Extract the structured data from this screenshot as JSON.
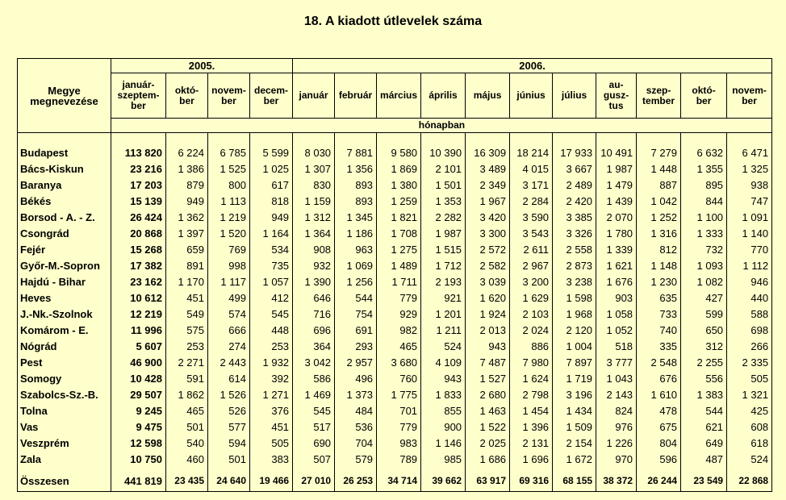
{
  "title": "18. A kiadott útlevelek száma",
  "header": {
    "county_label": "Megye megnevezése",
    "year_2005": "2005.",
    "year_2006": "2006.",
    "unit": "hónapban",
    "months": [
      "január-szeptember",
      "október",
      "november",
      "december",
      "január",
      "február",
      "március",
      "április",
      "május",
      "június",
      "július",
      "augusztus",
      "szeptember",
      "október",
      "november"
    ],
    "months_display": [
      "január-\nszeptem-\nber",
      "októ-\nber",
      "novem-\nber",
      "decem-\nber",
      "január",
      "február",
      "március",
      "április",
      "május",
      "június",
      "július",
      "au-\ngusz-\ntus",
      "szep-\ntember",
      "októ-\nber",
      "novem-\nber"
    ]
  },
  "rows": [
    {
      "name": "Budapest",
      "values": [
        "113 820",
        "6 224",
        "6 785",
        "5 599",
        "8 030",
        "7 881",
        "9 580",
        "10 390",
        "16 309",
        "18 214",
        "17 933",
        "10 491",
        "7 279",
        "6 632",
        "6 471"
      ]
    },
    {
      "name": "Bács-Kiskun",
      "values": [
        "23 216",
        "1 386",
        "1 525",
        "1 025",
        "1 307",
        "1 356",
        "1 869",
        "2 101",
        "3 489",
        "4 015",
        "3 667",
        "1 987",
        "1 448",
        "1 355",
        "1 325"
      ]
    },
    {
      "name": "Baranya",
      "values": [
        "17 203",
        "879",
        "800",
        "617",
        "830",
        "893",
        "1 380",
        "1 501",
        "2 349",
        "3 171",
        "2 489",
        "1 479",
        "887",
        "895",
        "938"
      ]
    },
    {
      "name": "Békés",
      "values": [
        "15 139",
        "949",
        "1 113",
        "818",
        "1 159",
        "893",
        "1 259",
        "1 353",
        "1 967",
        "2 284",
        "2 420",
        "1 439",
        "1 042",
        "844",
        "747"
      ]
    },
    {
      "name": "Borsod - A. - Z.",
      "values": [
        "26 424",
        "1 362",
        "1 219",
        "949",
        "1 312",
        "1 345",
        "1 821",
        "2 282",
        "3 420",
        "3 590",
        "3 385",
        "2 070",
        "1 252",
        "1 100",
        "1 091"
      ]
    },
    {
      "name": "Csongrád",
      "values": [
        "20 868",
        "1 397",
        "1 520",
        "1 164",
        "1 364",
        "1 186",
        "1 708",
        "1 987",
        "3 300",
        "3 543",
        "3 326",
        "1 780",
        "1 316",
        "1 333",
        "1 140"
      ]
    },
    {
      "name": "Fejér",
      "values": [
        "15 268",
        "659",
        "769",
        "534",
        "908",
        "963",
        "1 275",
        "1 515",
        "2 572",
        "2 611",
        "2 558",
        "1 339",
        "812",
        "732",
        "770"
      ]
    },
    {
      "name": "Győr-M.-Sopron",
      "values": [
        "17 382",
        "891",
        "998",
        "735",
        "932",
        "1 069",
        "1 489",
        "1 712",
        "2 582",
        "2 967",
        "2 873",
        "1 621",
        "1 148",
        "1 093",
        "1 112"
      ]
    },
    {
      "name": "Hajdú - Bihar",
      "values": [
        "23 162",
        "1 170",
        "1 117",
        "1 057",
        "1 390",
        "1 256",
        "1 711",
        "2 193",
        "3 039",
        "3 200",
        "3 238",
        "1 676",
        "1 230",
        "1 082",
        "946"
      ]
    },
    {
      "name": "Heves",
      "values": [
        "10 612",
        "451",
        "499",
        "412",
        "646",
        "544",
        "779",
        "921",
        "1 620",
        "1 629",
        "1 598",
        "903",
        "635",
        "427",
        "440"
      ]
    },
    {
      "name": "J.-Nk.-Szolnok",
      "values": [
        "12 219",
        "549",
        "574",
        "545",
        "716",
        "754",
        "929",
        "1 201",
        "1 924",
        "2 103",
        "1 968",
        "1 058",
        "733",
        "599",
        "588"
      ]
    },
    {
      "name": "Komárom - E.",
      "values": [
        "11 996",
        "575",
        "666",
        "448",
        "696",
        "691",
        "982",
        "1 211",
        "2 013",
        "2 024",
        "2 120",
        "1 052",
        "740",
        "650",
        "698"
      ]
    },
    {
      "name": "Nógrád",
      "values": [
        "5 607",
        "253",
        "274",
        "253",
        "364",
        "293",
        "465",
        "524",
        "943",
        "886",
        "1 004",
        "518",
        "335",
        "312",
        "266"
      ]
    },
    {
      "name": "Pest",
      "values": [
        "46 900",
        "2 271",
        "2 443",
        "1 932",
        "3 042",
        "2 957",
        "3 680",
        "4 109",
        "7 487",
        "7 980",
        "7 897",
        "3 777",
        "2 548",
        "2 255",
        "2 335"
      ]
    },
    {
      "name": "Somogy",
      "values": [
        "10 428",
        "591",
        "614",
        "392",
        "586",
        "496",
        "760",
        "943",
        "1 527",
        "1 624",
        "1 719",
        "1 043",
        "676",
        "556",
        "505"
      ]
    },
    {
      "name": "Szabolcs-Sz.-B.",
      "values": [
        "29 507",
        "1 862",
        "1 526",
        "1 271",
        "1 469",
        "1 373",
        "1 775",
        "1 833",
        "2 680",
        "2 798",
        "3 196",
        "2 143",
        "1 610",
        "1 383",
        "1 321"
      ]
    },
    {
      "name": "Tolna",
      "values": [
        "9 245",
        "465",
        "526",
        "376",
        "545",
        "484",
        "701",
        "855",
        "1 463",
        "1 454",
        "1 434",
        "824",
        "478",
        "544",
        "425"
      ]
    },
    {
      "name": "Vas",
      "values": [
        "9 475",
        "501",
        "577",
        "451",
        "517",
        "536",
        "779",
        "900",
        "1 522",
        "1 396",
        "1 509",
        "976",
        "675",
        "621",
        "608"
      ]
    },
    {
      "name": "Veszprém",
      "values": [
        "12 598",
        "540",
        "594",
        "505",
        "690",
        "704",
        "983",
        "1 146",
        "2 025",
        "2 131",
        "2 154",
        "1 226",
        "804",
        "649",
        "618"
      ]
    },
    {
      "name": "Zala",
      "values": [
        "10 750",
        "460",
        "501",
        "383",
        "507",
        "579",
        "789",
        "985",
        "1 686",
        "1 696",
        "1 672",
        "970",
        "596",
        "487",
        "524"
      ]
    }
  ],
  "total": {
    "name": "Összesen",
    "values": [
      "441 819",
      "23 435",
      "24 640",
      "19 466",
      "27 010",
      "26 253",
      "34 714",
      "39 662",
      "63 917",
      "69 316",
      "68 155",
      "38 372",
      "26 244",
      "23 549",
      "22 868"
    ]
  }
}
